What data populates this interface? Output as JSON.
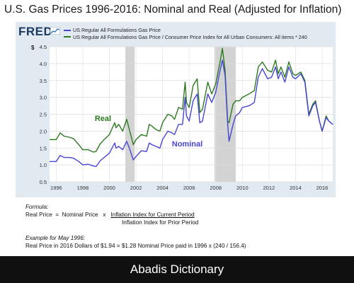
{
  "page_title": "U.S. Gas Prices 1996-2016:  Nominal and Real (Adjusted for Inflation)",
  "logo_text": "FRED",
  "y_currency_label": "$",
  "legend": [
    {
      "label": "US Regular All Formulations Gas Price",
      "color": "#4646d2"
    },
    {
      "label": "US Regular All Formulations Gas Price / Consumer Price Index for All Urban Consumers: All items * 240",
      "color": "#2b7a1f"
    }
  ],
  "annotations": {
    "real": "Real",
    "nominal": "Nominal"
  },
  "formula": {
    "heading": "Formula:",
    "line1_prefix": "Real Price  =  Nominal Price   x   ",
    "numerator": "Inflation Index for Current Period",
    "denominator": "Inflation Index for Prior Period",
    "example_heading": "Example for May 1996:",
    "example_text": "Real Price in 2016 Dollars of $1.94  =  $1.28 Nominal Price paid in 1996  x (240 / 156.4)"
  },
  "footer_text": "Abadis Dictionary",
  "chart_data": {
    "type": "line",
    "xlim": [
      1995.5,
      2016.8
    ],
    "ylim": [
      0.5,
      4.5
    ],
    "yticks": [
      0.5,
      1.0,
      1.5,
      2.0,
      2.5,
      3.0,
      3.5,
      4.0,
      4.5
    ],
    "ytick_labels": [
      "0.5",
      "1.0",
      "1.5",
      "2.0",
      "2.5",
      "3.0",
      "3.5",
      "4.0",
      "4.5"
    ],
    "xticks": [
      1996,
      1998,
      2000,
      2002,
      2004,
      2006,
      2008,
      2010,
      2012,
      2014,
      2016
    ],
    "xtick_labels": [
      "1996",
      "1998",
      "2000",
      "2002",
      "2004",
      "2006",
      "2008",
      "2010",
      "2012",
      "2014",
      "2016"
    ],
    "recessions": [
      [
        2001.2,
        2001.9
      ],
      [
        2007.9,
        2009.5
      ]
    ],
    "grid": true,
    "series": [
      {
        "name": "US Regular All Formulations Gas Price / Consumer Price Index for All Urban Consumers: All items * 240",
        "color": "#2b7a1f",
        "x": [
          1995.5,
          1996.0,
          1996.3,
          1996.6,
          1997.0,
          1997.3,
          1997.7,
          1998.0,
          1998.4,
          1998.8,
          1999.0,
          1999.3,
          1999.6,
          2000.0,
          2000.4,
          2000.5,
          2000.7,
          2001.0,
          2001.3,
          2001.5,
          2001.8,
          2002.0,
          2002.4,
          2002.8,
          2003.0,
          2003.2,
          2003.5,
          2003.8,
          2004.0,
          2004.4,
          2004.7,
          2004.9,
          2005.2,
          2005.5,
          2005.7,
          2005.8,
          2006.0,
          2006.3,
          2006.6,
          2006.8,
          2007.0,
          2007.4,
          2007.7,
          2008.0,
          2008.3,
          2008.5,
          2008.7,
          2008.9,
          2009.0,
          2009.3,
          2009.5,
          2009.8,
          2010.0,
          2010.5,
          2010.9,
          2011.2,
          2011.5,
          2011.9,
          2012.2,
          2012.5,
          2012.7,
          2012.9,
          2013.2,
          2013.5,
          2013.8,
          2014.0,
          2014.4,
          2014.7,
          2015.0,
          2015.3,
          2015.5,
          2015.8,
          2016.0,
          2016.3,
          2016.5,
          2016.8
        ],
        "values": [
          1.75,
          1.75,
          1.95,
          1.85,
          1.82,
          1.78,
          1.6,
          1.45,
          1.45,
          1.38,
          1.4,
          1.62,
          1.75,
          1.9,
          2.25,
          2.1,
          2.2,
          2.0,
          2.35,
          2.05,
          1.6,
          1.75,
          1.9,
          1.85,
          2.2,
          2.15,
          2.05,
          2.0,
          2.25,
          2.5,
          2.45,
          2.35,
          2.7,
          2.65,
          3.45,
          2.85,
          2.7,
          3.35,
          3.55,
          2.55,
          2.65,
          3.45,
          3.1,
          3.4,
          4.0,
          4.45,
          3.8,
          2.3,
          2.25,
          2.8,
          2.9,
          2.9,
          3.0,
          3.1,
          3.2,
          3.9,
          4.05,
          3.8,
          3.75,
          4.1,
          3.7,
          3.9,
          3.6,
          4.05,
          3.7,
          3.65,
          3.75,
          3.5,
          2.5,
          2.8,
          2.9,
          2.3,
          2.0,
          2.45,
          2.3,
          2.2
        ]
      },
      {
        "name": "US Regular All Formulations Gas Price",
        "color": "#4646d2",
        "x": [
          1995.5,
          1996.0,
          1996.3,
          1996.6,
          1997.0,
          1997.3,
          1997.7,
          1998.0,
          1998.4,
          1998.8,
          1999.0,
          1999.3,
          1999.6,
          2000.0,
          2000.4,
          2000.5,
          2000.7,
          2001.0,
          2001.3,
          2001.5,
          2001.8,
          2002.0,
          2002.4,
          2002.8,
          2003.0,
          2003.2,
          2003.5,
          2003.8,
          2004.0,
          2004.4,
          2004.7,
          2004.9,
          2005.2,
          2005.5,
          2005.7,
          2005.8,
          2006.0,
          2006.3,
          2006.6,
          2006.8,
          2007.0,
          2007.4,
          2007.7,
          2008.0,
          2008.3,
          2008.5,
          2008.7,
          2008.9,
          2009.0,
          2009.3,
          2009.5,
          2009.8,
          2010.0,
          2010.5,
          2010.9,
          2011.2,
          2011.5,
          2011.9,
          2012.2,
          2012.5,
          2012.7,
          2012.9,
          2013.2,
          2013.5,
          2013.8,
          2014.0,
          2014.4,
          2014.7,
          2015.0,
          2015.3,
          2015.5,
          2015.8,
          2016.0,
          2016.3,
          2016.5,
          2016.8
        ],
        "values": [
          1.1,
          1.1,
          1.28,
          1.22,
          1.22,
          1.2,
          1.1,
          1.0,
          1.02,
          0.97,
          0.95,
          1.12,
          1.22,
          1.35,
          1.65,
          1.5,
          1.55,
          1.45,
          1.7,
          1.5,
          1.15,
          1.25,
          1.42,
          1.4,
          1.65,
          1.6,
          1.55,
          1.5,
          1.75,
          2.0,
          1.95,
          1.9,
          2.2,
          2.2,
          3.0,
          2.45,
          2.3,
          2.9,
          3.1,
          2.25,
          2.3,
          3.1,
          2.85,
          3.15,
          3.75,
          4.1,
          3.65,
          2.2,
          1.7,
          2.2,
          2.45,
          2.55,
          2.7,
          2.75,
          2.85,
          3.6,
          3.85,
          3.55,
          3.6,
          3.9,
          3.55,
          3.75,
          3.45,
          3.9,
          3.6,
          3.55,
          3.7,
          3.45,
          2.45,
          2.75,
          2.85,
          2.3,
          2.0,
          2.4,
          2.3,
          2.2
        ]
      }
    ]
  }
}
